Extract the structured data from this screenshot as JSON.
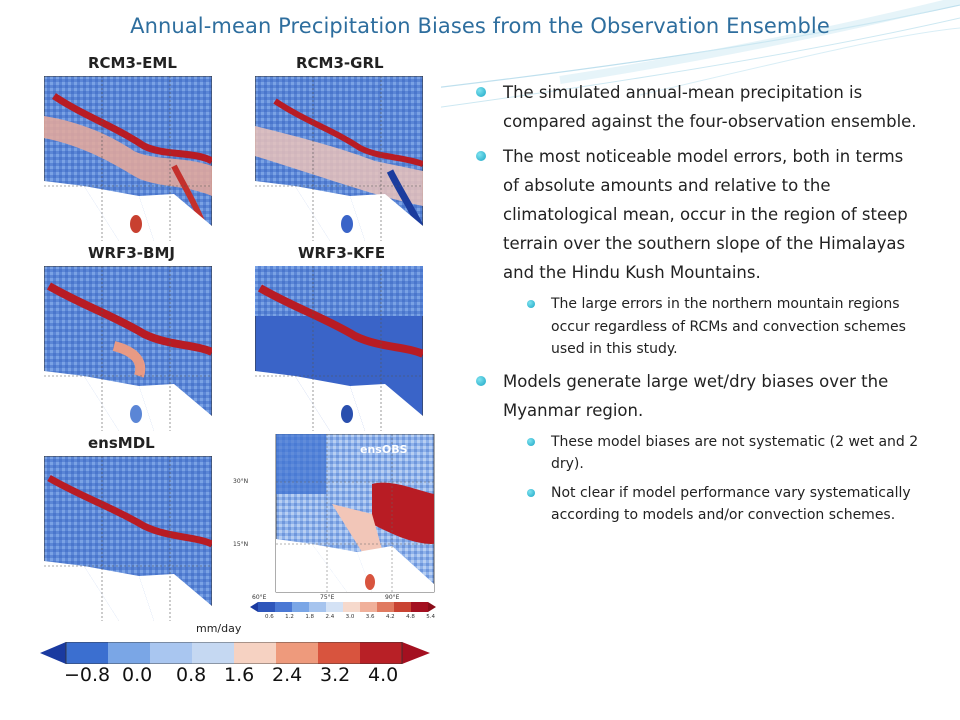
{
  "slide": {
    "title": "Annual-mean Precipitation Biases from the Observation Ensemble"
  },
  "figure": {
    "panels": [
      {
        "label": "RCM3-EML"
      },
      {
        "label": "RCM3-GRL"
      },
      {
        "label": "WRF3-BMJ"
      },
      {
        "label": "WRF3-KFE"
      },
      {
        "label": "ensMDL"
      }
    ],
    "obs_inset": {
      "label": "ensOBS",
      "lat_labels": [
        "30°N",
        "15°N"
      ],
      "lon_labels": [
        "60°E",
        "75°E",
        "90°E"
      ],
      "colorbar_ticks": [
        "0.6",
        "1.2",
        "1.8",
        "2.4",
        "3.0",
        "3.6",
        "4.2",
        "4.8",
        "5.4"
      ]
    },
    "units": "mm/day",
    "colorbar": {
      "ticks": [
        "−0.8",
        "0.0",
        "0.8",
        "1.6",
        "2.4",
        "3.2",
        "4.0"
      ],
      "colors": [
        "#1a3aa0",
        "#3b6fd0",
        "#7aa6e6",
        "#c5d8f2",
        "#f6d2c2",
        "#ee9a7c",
        "#d8543e",
        "#a41020"
      ]
    }
  },
  "bullets": [
    {
      "text": "The simulated annual-mean precipitation is compared against the four-observation ensemble.",
      "sub": []
    },
    {
      "text": "The most noticeable model errors, both in terms of absolute amounts and relative to the climatological mean, occur in the region of steep terrain over the southern slope of the Himalayas and the Hindu Kush Mountains.",
      "sub": [
        "The large errors in the northern mountain regions occur regardless of RCMs and convection schemes used in this study."
      ]
    },
    {
      "text": "Models generate large wet/dry biases over the Myanmar region.",
      "sub": [
        "These model biases are not systematic (2 wet and 2 dry).",
        "Not clear if model performance vary systematically according to models and/or convection schemes."
      ]
    }
  ]
}
